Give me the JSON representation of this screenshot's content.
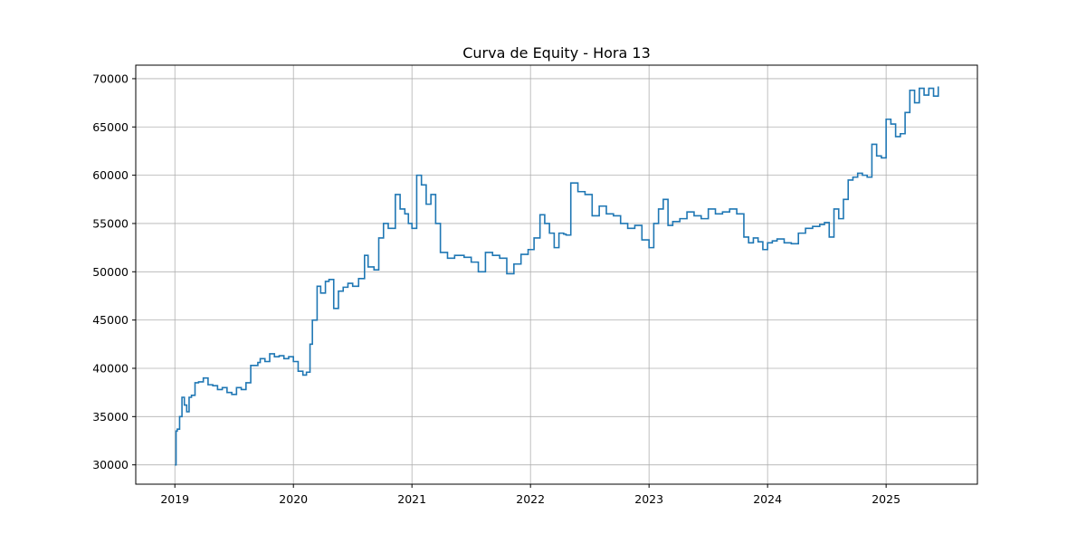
{
  "chart_data": {
    "type": "line",
    "title": "Curva de Equity - Hora 13",
    "xlabel": "",
    "ylabel": "",
    "x_tick_labels": [
      "2019",
      "2020",
      "2021",
      "2022",
      "2023",
      "2024",
      "2025"
    ],
    "x_ticks": [
      2019,
      2020,
      2021,
      2022,
      2023,
      2024,
      2025
    ],
    "y_tick_labels": [
      "30000",
      "35000",
      "40000",
      "45000",
      "50000",
      "55000",
      "60000",
      "65000",
      "70000"
    ],
    "y_ticks": [
      30000,
      35000,
      40000,
      45000,
      50000,
      55000,
      60000,
      65000,
      70000
    ],
    "xlim": [
      2018.67,
      2025.77
    ],
    "ylim": [
      28000,
      71400
    ],
    "grid": true,
    "line_color": "#1f77b4",
    "series": [
      {
        "x": [
          2019.0,
          2019.01,
          2019.02,
          2019.04,
          2019.06,
          2019.08,
          2019.1,
          2019.12,
          2019.14,
          2019.17,
          2019.2,
          2019.24,
          2019.28,
          2019.32,
          2019.36,
          2019.4,
          2019.44,
          2019.48,
          2019.52,
          2019.56,
          2019.6,
          2019.64,
          2019.68,
          2019.7,
          2019.72,
          2019.76,
          2019.8,
          2019.84,
          2019.88,
          2019.92,
          2019.96,
          2020.0,
          2020.04,
          2020.08,
          2020.11,
          2020.14,
          2020.16,
          2020.2,
          2020.23,
          2020.27,
          2020.3,
          2020.34,
          2020.38,
          2020.42,
          2020.46,
          2020.5,
          2020.55,
          2020.6,
          2020.63,
          2020.68,
          2020.72,
          2020.76,
          2020.8,
          2020.86,
          2020.9,
          2020.94,
          2020.97,
          2021.0,
          2021.04,
          2021.08,
          2021.12,
          2021.16,
          2021.2,
          2021.24,
          2021.3,
          2021.36,
          2021.44,
          2021.5,
          2021.56,
          2021.62,
          2021.68,
          2021.74,
          2021.8,
          2021.86,
          2021.92,
          2021.98,
          2022.03,
          2022.08,
          2022.12,
          2022.16,
          2022.2,
          2022.24,
          2022.28,
          2022.3,
          2022.34,
          2022.4,
          2022.46,
          2022.52,
          2022.58,
          2022.64,
          2022.7,
          2022.76,
          2022.82,
          2022.88,
          2022.94,
          2023.0,
          2023.04,
          2023.08,
          2023.12,
          2023.16,
          2023.2,
          2023.26,
          2023.32,
          2023.38,
          2023.44,
          2023.5,
          2023.56,
          2023.62,
          2023.68,
          2023.74,
          2023.8,
          2023.84,
          2023.88,
          2023.92,
          2023.96,
          2024.0,
          2024.04,
          2024.08,
          2024.14,
          2024.2,
          2024.26,
          2024.32,
          2024.38,
          2024.44,
          2024.48,
          2024.52,
          2024.56,
          2024.6,
          2024.64,
          2024.68,
          2024.72,
          2024.76,
          2024.8,
          2024.84,
          2024.88,
          2024.92,
          2024.96,
          2025.0,
          2025.04,
          2025.08,
          2025.12,
          2025.16,
          2025.2,
          2025.24,
          2025.28,
          2025.32,
          2025.36,
          2025.4,
          2025.44
        ],
        "y": [
          30000,
          33500,
          33700,
          35000,
          37000,
          36200,
          35500,
          37000,
          37200,
          38500,
          38600,
          39000,
          38300,
          38200,
          37800,
          38000,
          37500,
          37300,
          38000,
          37800,
          38500,
          40300,
          40300,
          40600,
          41000,
          40700,
          41500,
          41200,
          41300,
          41000,
          41200,
          40700,
          39700,
          39300,
          39600,
          42500,
          45000,
          48500,
          47800,
          49000,
          49200,
          46200,
          48000,
          48400,
          48800,
          48500,
          49300,
          51700,
          50500,
          50200,
          53500,
          55000,
          54500,
          58000,
          56500,
          56000,
          55000,
          54500,
          60000,
          59000,
          57000,
          58000,
          55000,
          52000,
          51400,
          51700,
          51500,
          51000,
          50000,
          52000,
          51700,
          51400,
          49800,
          50800,
          51800,
          52300,
          53500,
          55900,
          55000,
          54000,
          52500,
          54000,
          53900,
          53800,
          59200,
          58300,
          58000,
          55800,
          56800,
          56000,
          55800,
          55000,
          54500,
          54800,
          53300,
          52500,
          55000,
          56500,
          57500,
          54800,
          55200,
          55500,
          56200,
          55800,
          55500,
          56500,
          56000,
          56200,
          56500,
          56000,
          53600,
          53000,
          53500,
          53100,
          52300,
          53000,
          53200,
          53400,
          53000,
          52900,
          54000,
          54500,
          54700,
          54900,
          55100,
          53600,
          56500,
          55500,
          57500,
          59500,
          59800,
          60200,
          60000,
          59800,
          63200,
          62000,
          61800,
          65800,
          65300,
          64000,
          64300,
          66500,
          68800,
          67500,
          69000,
          68300,
          69000,
          68200,
          69200
        ]
      }
    ]
  }
}
